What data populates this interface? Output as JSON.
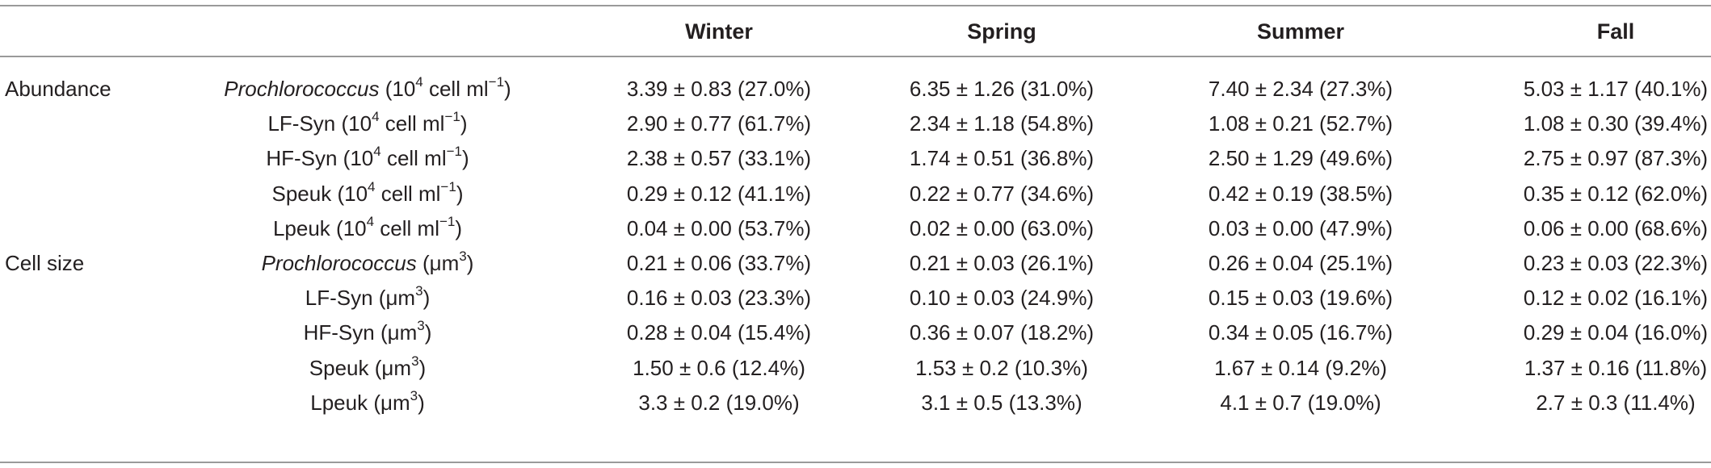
{
  "table": {
    "headers": {
      "group": "",
      "parameter": "",
      "winter": "Winter",
      "spring": "Spring",
      "summer": "Summer",
      "fall": "Fall"
    },
    "rows": [
      {
        "group": "Abundance",
        "param_name": "Prochlorococcus",
        "param_italic": true,
        "param_unit": "(10",
        "param_sup": "4",
        "param_unit2": " cell ml",
        "param_sup2": "−1",
        "param_close": ")",
        "winter": "3.39 ± 0.83 (27.0%)",
        "spring": "6.35 ± 1.26 (31.0%)",
        "summer": "7.40 ± 2.34 (27.3%)",
        "fall": "5.03 ± 1.17 (40.1%)"
      },
      {
        "group": "",
        "param_name": "LF-Syn",
        "param_italic": false,
        "param_unit": "(10",
        "param_sup": "4",
        "param_unit2": " cell ml",
        "param_sup2": "−1",
        "param_close": ")",
        "winter": "2.90 ± 0.77 (61.7%)",
        "spring": "2.34 ± 1.18 (54.8%)",
        "summer": "1.08 ± 0.21 (52.7%)",
        "fall": "1.08 ± 0.30 (39.4%)"
      },
      {
        "group": "",
        "param_name": "HF-Syn",
        "param_italic": false,
        "param_unit": "(10",
        "param_sup": "4",
        "param_unit2": " cell ml",
        "param_sup2": "−1",
        "param_close": ")",
        "winter": "2.38 ± 0.57 (33.1%)",
        "spring": "1.74 ± 0.51 (36.8%)",
        "summer": "2.50 ± 1.29 (49.6%)",
        "fall": "2.75 ± 0.97 (87.3%)"
      },
      {
        "group": "",
        "param_name": "Speuk",
        "param_italic": false,
        "param_unit": "(10",
        "param_sup": "4",
        "param_unit2": " cell ml",
        "param_sup2": "−1",
        "param_close": ")",
        "winter": "0.29 ± 0.12 (41.1%)",
        "spring": "0.22 ± 0.77 (34.6%)",
        "summer": "0.42 ± 0.19 (38.5%)",
        "fall": "0.35 ± 0.12 (62.0%)"
      },
      {
        "group": "",
        "param_name": "Lpeuk",
        "param_italic": false,
        "param_unit": "(10",
        "param_sup": "4",
        "param_unit2": " cell ml",
        "param_sup2": "−1",
        "param_close": ")",
        "winter": "0.04 ± 0.00 (53.7%)",
        "spring": "0.02 ± 0.00 (63.0%)",
        "summer": "0.03 ± 0.00 (47.9%)",
        "fall": "0.06 ± 0.00 (68.6%)"
      },
      {
        "group": "Cell size",
        "param_name": "Prochlorococcus",
        "param_italic": true,
        "param_unit": "(μm",
        "param_sup": "3",
        "param_unit2": "",
        "param_sup2": "",
        "param_close": ")",
        "winter": "0.21 ± 0.06 (33.7%)",
        "spring": "0.21 ± 0.03 (26.1%)",
        "summer": "0.26 ± 0.04 (25.1%)",
        "fall": "0.23 ± 0.03 (22.3%)"
      },
      {
        "group": "",
        "param_name": "LF-Syn",
        "param_italic": false,
        "param_unit": "(μm",
        "param_sup": "3",
        "param_unit2": "",
        "param_sup2": "",
        "param_close": ")",
        "winter": "0.16 ± 0.03 (23.3%)",
        "spring": "0.10 ± 0.03 (24.9%)",
        "summer": "0.15 ± 0.03 (19.6%)",
        "fall": "0.12 ± 0.02 (16.1%)"
      },
      {
        "group": "",
        "param_name": "HF-Syn",
        "param_italic": false,
        "param_unit": "(μm",
        "param_sup": "3",
        "param_unit2": "",
        "param_sup2": "",
        "param_close": ")",
        "winter": "0.28 ± 0.04 (15.4%)",
        "spring": "0.36 ± 0.07 (18.2%)",
        "summer": "0.34 ± 0.05 (16.7%)",
        "fall": "0.29 ± 0.04 (16.0%)"
      },
      {
        "group": "",
        "param_name": "Speuk",
        "param_italic": false,
        "param_unit": "(μm",
        "param_sup": "3",
        "param_unit2": "",
        "param_sup2": "",
        "param_close": ")",
        "winter": "1.50 ± 0.6 (12.4%)",
        "spring": "1.53 ± 0.2 (10.3%)",
        "summer": "1.67 ± 0.14 (9.2%)",
        "fall": "1.37 ± 0.16 (11.8%)"
      },
      {
        "group": "",
        "param_name": "Lpeuk",
        "param_italic": false,
        "param_unit": "(μm",
        "param_sup": "3",
        "param_unit2": "",
        "param_sup2": "",
        "param_close": ")",
        "winter": "3.3 ± 0.2 (19.0%)",
        "spring": "3.1 ± 0.5 (13.3%)",
        "summer": "4.1 ± 0.7 (19.0%)",
        "fall": "2.7 ± 0.3 (11.4%)"
      }
    ]
  }
}
